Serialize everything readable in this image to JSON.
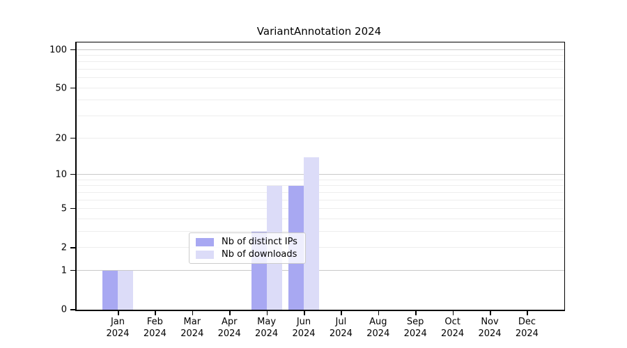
{
  "title": "VariantAnnotation 2024",
  "chart_data": {
    "type": "bar",
    "title": "VariantAnnotation 2024",
    "y_scale": "log1p",
    "ylim": [
      0,
      114
    ],
    "grid": "on",
    "legend_position": "lower-center-inside",
    "categories": [
      "Jan",
      "Feb",
      "Mar",
      "Apr",
      "May",
      "Jun",
      "Jul",
      "Aug",
      "Sep",
      "Oct",
      "Nov",
      "Dec"
    ],
    "category_year": "2024",
    "series": [
      {
        "name": "Nb of distinct IPs",
        "color": "#a8a8f2",
        "values": [
          1,
          0,
          0,
          0,
          3,
          8,
          0,
          0,
          0,
          0,
          0,
          0
        ]
      },
      {
        "name": "Nb of downloads",
        "color": "#dcdcf8",
        "values": [
          1,
          0,
          0,
          0,
          8,
          14,
          0,
          0,
          0,
          0,
          0,
          0
        ]
      }
    ],
    "y_tick_labels": [
      0,
      1,
      2,
      5,
      10,
      20,
      50,
      100
    ],
    "major_gridlines": [
      1,
      10,
      100
    ],
    "minor_gridlines": [
      2,
      3,
      4,
      5,
      6,
      7,
      8,
      9,
      20,
      30,
      40,
      50,
      60,
      70,
      80,
      90
    ]
  },
  "colors": {
    "background": "#ffffff",
    "axis": "#000000",
    "text": "#000000",
    "grid_major": "#c9c9c9",
    "grid_minor": "#ededed",
    "legend_border": "#cccccc"
  }
}
